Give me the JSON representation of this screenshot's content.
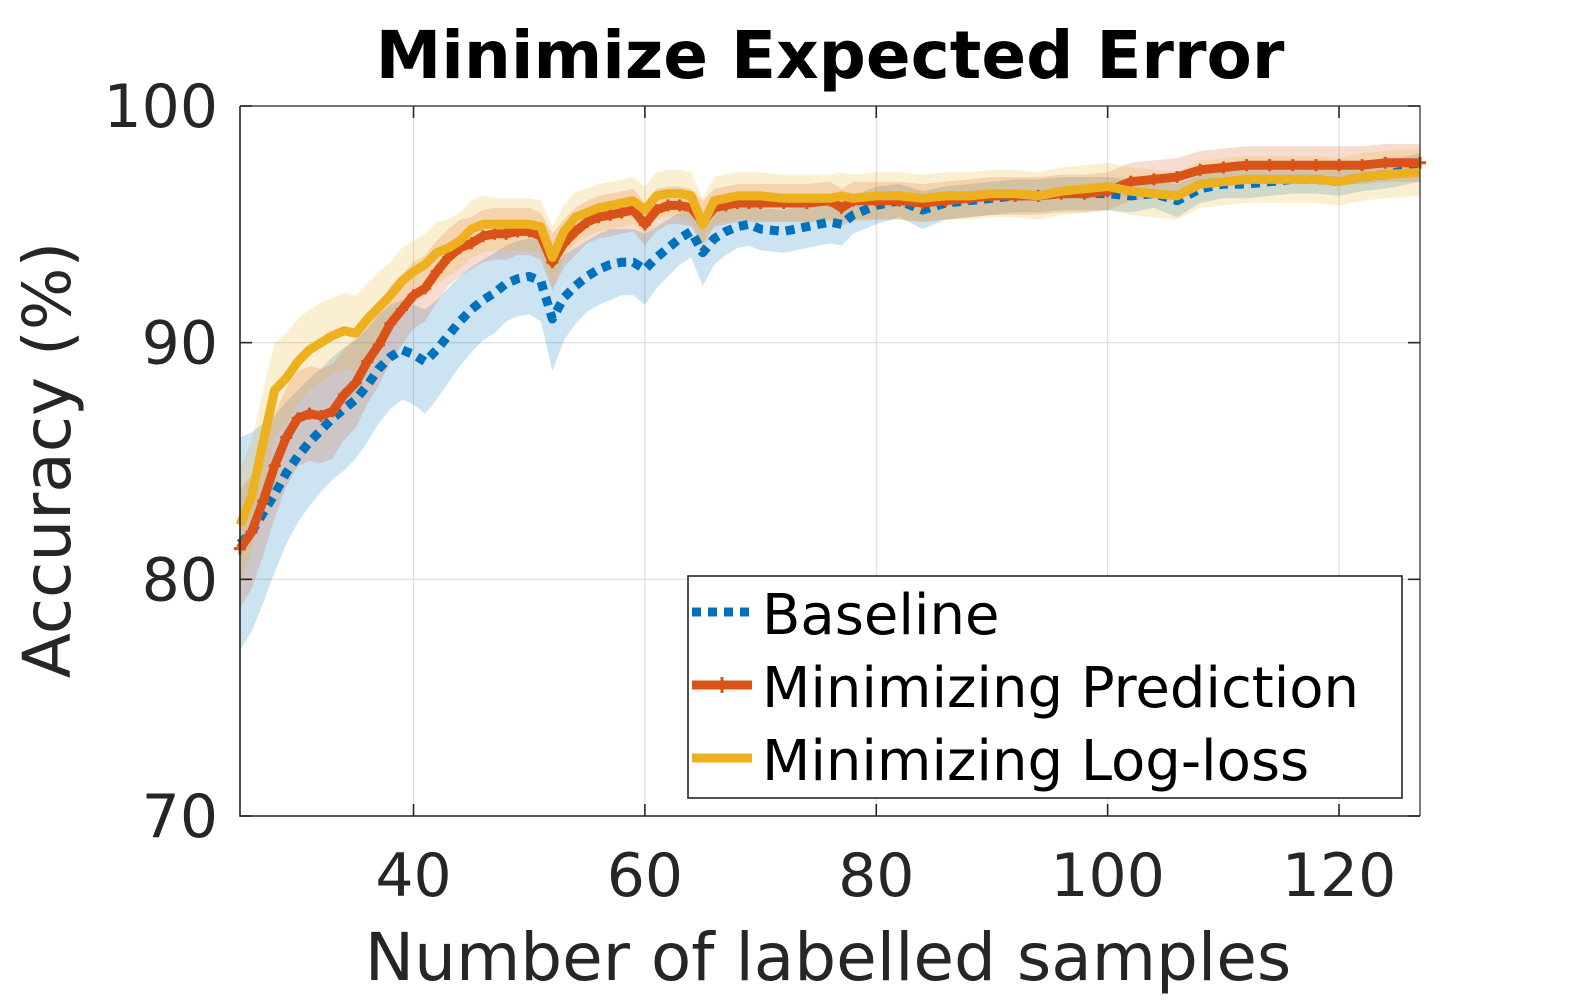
{
  "chart_data": {
    "type": "line",
    "title": "Minimize Expected Error",
    "xlabel": "Number of labelled samples",
    "ylabel": "Accuracy (%)",
    "xlim": [
      25,
      127
    ],
    "ylim": [
      70,
      100
    ],
    "xticks": [
      40,
      60,
      80,
      100,
      120
    ],
    "yticks": [
      70,
      80,
      90,
      100
    ],
    "grid": true,
    "legend_position": "bottom-right",
    "series": [
      {
        "name": "Baseline",
        "color": "#0072BD",
        "style": "dotted",
        "x": [
          25,
          26,
          27,
          28,
          29,
          30,
          31,
          32,
          33,
          34,
          35,
          36,
          37,
          38,
          39,
          40,
          41,
          42,
          43,
          44,
          45,
          46,
          47,
          48,
          49,
          50,
          51,
          52,
          53,
          54,
          55,
          56,
          57,
          58,
          59,
          60,
          61,
          62,
          63,
          64,
          65,
          66,
          67,
          68,
          69,
          70,
          72,
          74,
          76,
          77,
          78,
          80,
          82,
          84,
          86,
          88,
          90,
          92,
          94,
          96,
          98,
          100,
          102,
          104,
          106,
          108,
          110,
          112,
          114,
          116,
          118,
          120,
          122,
          124,
          127
        ],
        "y": [
          81.5,
          82.0,
          82.8,
          83.6,
          84.5,
          85.2,
          85.8,
          86.3,
          86.8,
          87.2,
          87.6,
          88.2,
          88.9,
          89.4,
          89.7,
          89.5,
          89.2,
          89.7,
          90.3,
          90.9,
          91.4,
          91.8,
          92.1,
          92.5,
          92.7,
          92.8,
          92.6,
          91.0,
          91.9,
          92.4,
          92.8,
          93.1,
          93.3,
          93.4,
          93.4,
          93.1,
          93.6,
          94.0,
          94.4,
          94.7,
          93.8,
          94.4,
          94.7,
          94.9,
          95.0,
          94.8,
          94.7,
          94.9,
          95.1,
          95.0,
          95.4,
          95.8,
          96.0,
          95.6,
          95.9,
          96.0,
          96.1,
          96.2,
          96.2,
          96.3,
          96.3,
          96.3,
          96.2,
          96.3,
          96.0,
          96.5,
          96.7,
          96.7,
          96.8,
          96.9,
          96.9,
          96.8,
          97.0,
          97.1,
          97.4
        ],
        "band": [
          4.5,
          4.2,
          3.8,
          3.3,
          3.0,
          2.8,
          2.7,
          2.6,
          2.6,
          2.6,
          2.5,
          2.4,
          2.3,
          2.2,
          2.1,
          2.1,
          2.2,
          2.1,
          2.0,
          1.9,
          1.8,
          1.7,
          1.7,
          1.6,
          1.6,
          1.6,
          1.7,
          2.2,
          1.8,
          1.6,
          1.5,
          1.5,
          1.5,
          1.4,
          1.4,
          1.5,
          1.3,
          1.2,
          1.1,
          1.1,
          1.4,
          1.1,
          1.0,
          0.9,
          0.9,
          0.9,
          0.9,
          0.9,
          0.9,
          0.9,
          0.8,
          0.8,
          0.7,
          0.8,
          0.7,
          0.7,
          0.7,
          0.7,
          0.7,
          0.7,
          0.7,
          0.7,
          0.7,
          0.6,
          0.7,
          0.6,
          0.6,
          0.6,
          0.6,
          0.6,
          0.6,
          0.6,
          0.6,
          0.6,
          0.6
        ]
      },
      {
        "name": "Minimizing Prediction",
        "color": "#D95319",
        "style": "solid-plus",
        "x": [
          25,
          26,
          27,
          28,
          29,
          30,
          31,
          32,
          33,
          34,
          35,
          36,
          37,
          38,
          39,
          40,
          41,
          42,
          43,
          44,
          45,
          46,
          47,
          48,
          49,
          50,
          51,
          52,
          53,
          54,
          55,
          56,
          57,
          58,
          59,
          60,
          61,
          62,
          63,
          64,
          65,
          66,
          67,
          68,
          69,
          70,
          72,
          74,
          76,
          77,
          78,
          80,
          82,
          84,
          86,
          88,
          90,
          92,
          94,
          96,
          98,
          100,
          102,
          104,
          106,
          108,
          110,
          112,
          114,
          116,
          118,
          120,
          122,
          124,
          127
        ],
        "y": [
          81.3,
          82.0,
          83.3,
          84.8,
          86.0,
          86.8,
          87.0,
          86.9,
          87.1,
          87.8,
          88.3,
          89.2,
          89.9,
          90.8,
          91.4,
          92.0,
          92.3,
          93.0,
          93.6,
          94.0,
          94.2,
          94.5,
          94.6,
          94.6,
          94.7,
          94.7,
          94.5,
          93.4,
          94.2,
          94.7,
          95.1,
          95.3,
          95.4,
          95.5,
          95.6,
          95.0,
          95.6,
          95.8,
          95.8,
          95.7,
          95.1,
          95.7,
          95.8,
          95.9,
          95.9,
          95.9,
          95.9,
          95.9,
          96.0,
          95.7,
          96.0,
          96.0,
          96.0,
          95.9,
          96.0,
          96.1,
          96.2,
          96.2,
          96.2,
          96.3,
          96.3,
          96.4,
          96.8,
          96.9,
          97.0,
          97.3,
          97.4,
          97.5,
          97.5,
          97.5,
          97.5,
          97.5,
          97.5,
          97.6,
          97.6
        ],
        "band": [
          2.5,
          2.4,
          2.3,
          2.2,
          2.1,
          2.0,
          2.0,
          2.0,
          2.0,
          1.9,
          1.9,
          1.8,
          1.7,
          1.6,
          1.5,
          1.4,
          1.4,
          1.3,
          1.2,
          1.2,
          1.1,
          1.1,
          1.1,
          1.1,
          1.0,
          1.0,
          1.0,
          1.2,
          1.0,
          1.0,
          0.9,
          0.9,
          0.9,
          0.9,
          0.9,
          0.9,
          0.9,
          0.8,
          0.8,
          0.8,
          0.9,
          0.8,
          0.8,
          0.8,
          0.8,
          0.8,
          0.8,
          0.8,
          0.8,
          0.8,
          0.8,
          0.8,
          0.8,
          0.8,
          0.8,
          0.8,
          0.8,
          0.8,
          0.8,
          0.8,
          0.8,
          0.8,
          0.8,
          0.8,
          0.8,
          0.8,
          0.8,
          0.8,
          0.8,
          0.8,
          0.8,
          0.8,
          0.8,
          0.8,
          0.8
        ]
      },
      {
        "name": "Minimizing Log-loss",
        "color": "#EDB120",
        "style": "solid",
        "x": [
          25,
          26,
          27,
          28,
          29,
          30,
          31,
          32,
          33,
          34,
          35,
          36,
          37,
          38,
          39,
          40,
          41,
          42,
          43,
          44,
          45,
          46,
          47,
          48,
          49,
          50,
          51,
          52,
          53,
          54,
          55,
          56,
          57,
          58,
          59,
          60,
          61,
          62,
          63,
          64,
          65,
          66,
          67,
          68,
          69,
          70,
          72,
          74,
          76,
          77,
          78,
          80,
          82,
          84,
          86,
          88,
          90,
          92,
          94,
          96,
          98,
          100,
          102,
          104,
          106,
          108,
          110,
          112,
          114,
          116,
          118,
          120,
          122,
          124,
          127
        ],
        "y": [
          82.3,
          83.5,
          85.8,
          88.0,
          88.5,
          89.2,
          89.7,
          90.0,
          90.3,
          90.5,
          90.4,
          91.0,
          91.5,
          92.0,
          92.6,
          93.0,
          93.3,
          93.8,
          94.0,
          94.3,
          94.8,
          95.0,
          95.0,
          95.0,
          95.0,
          95.0,
          94.9,
          93.6,
          94.7,
          95.3,
          95.5,
          95.7,
          95.8,
          95.9,
          96.0,
          95.6,
          96.2,
          96.3,
          96.3,
          96.2,
          95.0,
          96.0,
          96.1,
          96.2,
          96.2,
          96.2,
          96.1,
          96.1,
          96.1,
          96.2,
          96.1,
          96.2,
          96.2,
          96.1,
          96.2,
          96.2,
          96.3,
          96.3,
          96.2,
          96.4,
          96.5,
          96.6,
          96.4,
          96.3,
          96.2,
          96.7,
          96.8,
          96.9,
          96.9,
          96.9,
          96.9,
          96.8,
          97.0,
          97.1,
          97.2
        ],
        "band": [
          2.4,
          2.3,
          2.2,
          2.0,
          1.9,
          1.8,
          1.7,
          1.7,
          1.6,
          1.6,
          1.6,
          1.5,
          1.5,
          1.4,
          1.4,
          1.3,
          1.3,
          1.3,
          1.2,
          1.2,
          1.2,
          1.2,
          1.1,
          1.1,
          1.1,
          1.1,
          1.1,
          1.3,
          1.1,
          1.1,
          1.0,
          1.0,
          1.0,
          1.0,
          1.0,
          1.0,
          1.0,
          1.0,
          1.0,
          1.0,
          1.1,
          1.0,
          1.0,
          1.0,
          1.0,
          1.0,
          1.0,
          1.0,
          1.0,
          1.0,
          1.0,
          1.0,
          1.0,
          1.0,
          1.0,
          1.0,
          1.0,
          1.0,
          1.0,
          1.0,
          1.0,
          1.0,
          1.0,
          1.0,
          1.0,
          1.0,
          1.0,
          1.0,
          1.0,
          1.0,
          1.0,
          1.0,
          1.0,
          1.0,
          1.0
        ]
      }
    ]
  }
}
